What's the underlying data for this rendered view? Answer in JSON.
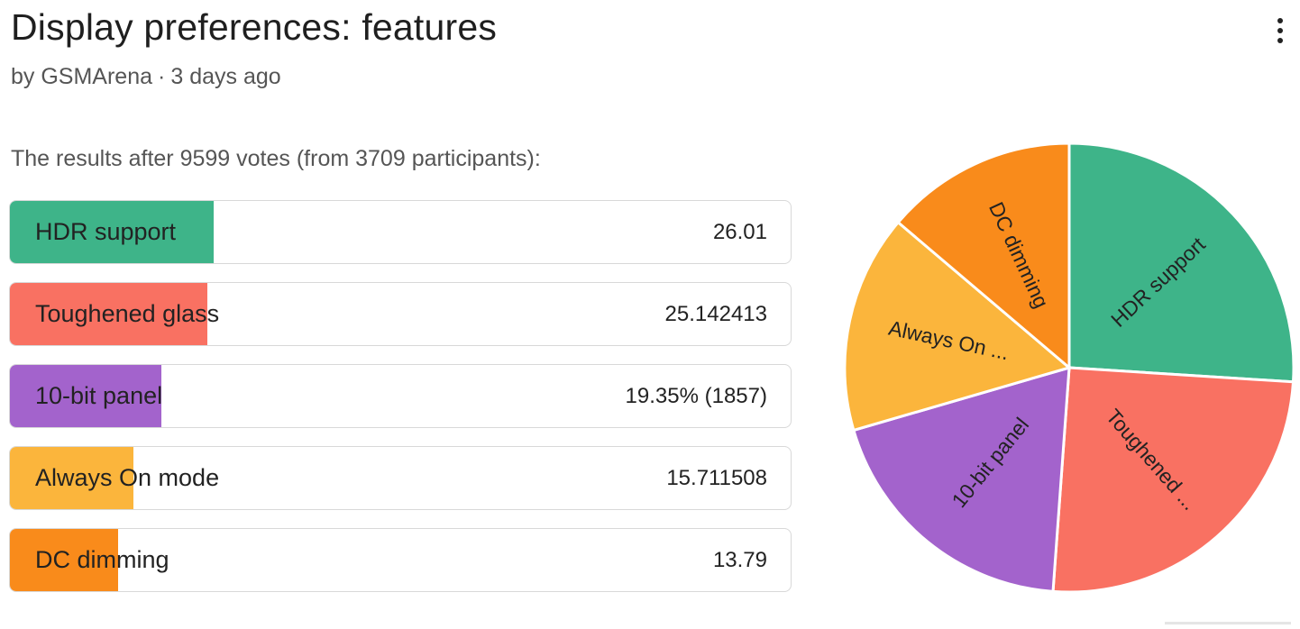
{
  "header": {
    "title": "Display preferences: features",
    "author": "by GSMArena",
    "separator": "·",
    "time": "3 days ago",
    "menu_icon": "kebab-menu-icon"
  },
  "summary": {
    "prefix": "The results after ",
    "votes": "9599",
    "middle": " votes (from ",
    "participants": "3709",
    "suffix": " participants):"
  },
  "chart_data": {
    "type": "pie",
    "categories": [
      "HDR support",
      "Toughened glass",
      "10-bit panel",
      "Always On mode",
      "DC dimming"
    ],
    "values": [
      26.01,
      25.142413,
      19.35,
      15.711508,
      13.79
    ],
    "value_labels": [
      "26.01",
      "25.142413",
      "19.35% (1857)",
      "15.711508",
      "13.79"
    ],
    "slice_labels": [
      "HDR support",
      "Toughened ...",
      "10-bit panel",
      "Always On ...",
      "DC dimming"
    ],
    "colors": [
      "#3eb489",
      "#f97162",
      "#a363cc",
      "#fbb53c",
      "#f98b1b"
    ],
    "title": "",
    "legend": "none"
  }
}
